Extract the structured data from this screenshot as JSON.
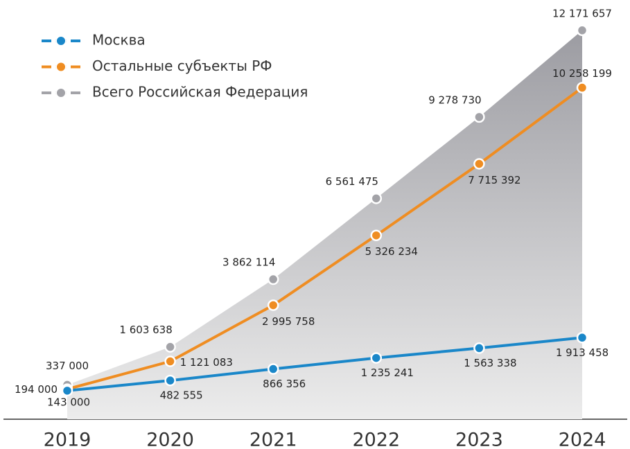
{
  "chart_data": {
    "type": "line",
    "categories": [
      "2019",
      "2020",
      "2021",
      "2022",
      "2023",
      "2024"
    ],
    "series": [
      {
        "name": "Москва",
        "color": "#1a87c9",
        "values": [
          143000,
          482555,
          866356,
          1235241,
          1563338,
          1913458
        ],
        "value_labels": [
          "143 000",
          "482 555",
          "866 356",
          "1 235 241",
          "1 563 338",
          "1 913 458"
        ]
      },
      {
        "name": "Остальные субъекты РФ",
        "color": "#ef8d22",
        "values": [
          194000,
          1121083,
          2995758,
          5326234,
          7715392,
          10258199
        ],
        "value_labels": [
          "194 000",
          "1 121 083",
          "2 995 758",
          "5 326 234",
          "7 715 392",
          "10 258 199"
        ]
      },
      {
        "name": "Всего Российская Федерация",
        "color": "#a3a3a8",
        "values": [
          337000,
          1603638,
          3862114,
          6561475,
          9278730,
          12171657
        ],
        "value_labels": [
          "337 000",
          "1 603 638",
          "3 862 114",
          "6 561 475",
          "9 278 730",
          "12 171 657"
        ]
      }
    ],
    "ylim": [
      0,
      13000000
    ],
    "legend": "top-left"
  }
}
